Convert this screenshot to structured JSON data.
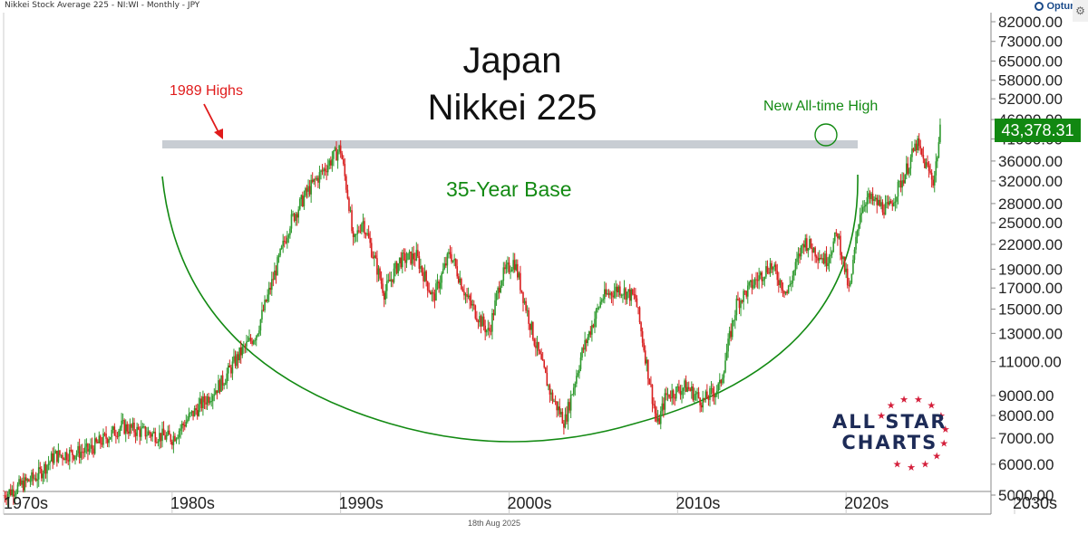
{
  "header": {
    "instrument": "Nikkei Stock Average 225 - NI:WI - Monthly - JPY",
    "brand": "Optuma",
    "date": "18th Aug 2025",
    "settings_icon": "gear-icon"
  },
  "titles": {
    "line1": "Japan",
    "line2": "Nikkei 225"
  },
  "annotations": {
    "highs_1989": "1989 Highs",
    "new_ath": "New All-time High",
    "base": "35-Year Base"
  },
  "logo": {
    "line1": "ALL STAR",
    "line2": "CHARTS"
  },
  "last_value": "43,378.31",
  "colors": {
    "up": "#2f9a2f",
    "down": "#d82020",
    "annotation_green": "#138a13",
    "annotation_red": "#e01b1b",
    "resistance_band": "#c8cdd3",
    "value_tag": "#118811",
    "logo_navy": "#1d2b57",
    "logo_stars": "#d41e3a"
  },
  "chart_data": {
    "type": "candlestick",
    "scale": "log",
    "y_tick_labels": [
      "82000.00",
      "73000.00",
      "65000.00",
      "58000.00",
      "52000.00",
      "46000.00",
      "41000.00",
      "36000.00",
      "32000.00",
      "28000.00",
      "25000.00",
      "22000.00",
      "19000.00",
      "17000.00",
      "15000.00",
      "13000.00",
      "11000.00",
      "9000.00",
      "8000.00",
      "7000.00",
      "6000.00",
      "5000.00"
    ],
    "x_tick_labels": [
      "1970s",
      "1980s",
      "1990s",
      "2000s",
      "2010s",
      "2020s",
      "2030s"
    ],
    "x_range": [
      1970,
      2030
    ],
    "series": [
      {
        "x": [
          1970,
          1972,
          1973,
          1975,
          1977,
          1978,
          1980,
          1981,
          1983,
          1984,
          1985,
          1986,
          1987,
          1988,
          1989.98,
          1990.5,
          1990.75,
          1991.3,
          1992.6,
          1993.5,
          1994.5,
          1995.5,
          1996.5,
          1997.5,
          1998.8,
          1999.5,
          2000.3,
          2001.5,
          2002.5,
          2003.3,
          2004.3,
          2005.5,
          2006.5,
          2007.5,
          2008.8,
          2009.3,
          2010.5,
          2011.5,
          2012.5,
          2013.5,
          2014.5,
          2015.5,
          2016.5,
          2017.5,
          2018.8,
          2019.5,
          2020.2,
          2020.8,
          2021.2,
          2022.5,
          2023.5,
          2024.2,
          2024.6,
          2025.2,
          2025.6
        ],
        "y": [
          5000,
          5600,
          6300,
          6500,
          7500,
          7300,
          7000,
          7900,
          9800,
          11500,
          13000,
          18000,
          25000,
          30000,
          38900,
          28000,
          22000,
          25500,
          16500,
          20000,
          20500,
          16000,
          21000,
          16000,
          13000,
          18000,
          20000,
          12500,
          9000,
          7700,
          11500,
          16000,
          17000,
          16000,
          7500,
          9000,
          9500,
          8700,
          9500,
          15500,
          17500,
          19500,
          16500,
          22500,
          20000,
          23500,
          16500,
          26500,
          29000,
          27000,
          33500,
          40000,
          36000,
          32000,
          43378.31
        ]
      }
    ]
  }
}
